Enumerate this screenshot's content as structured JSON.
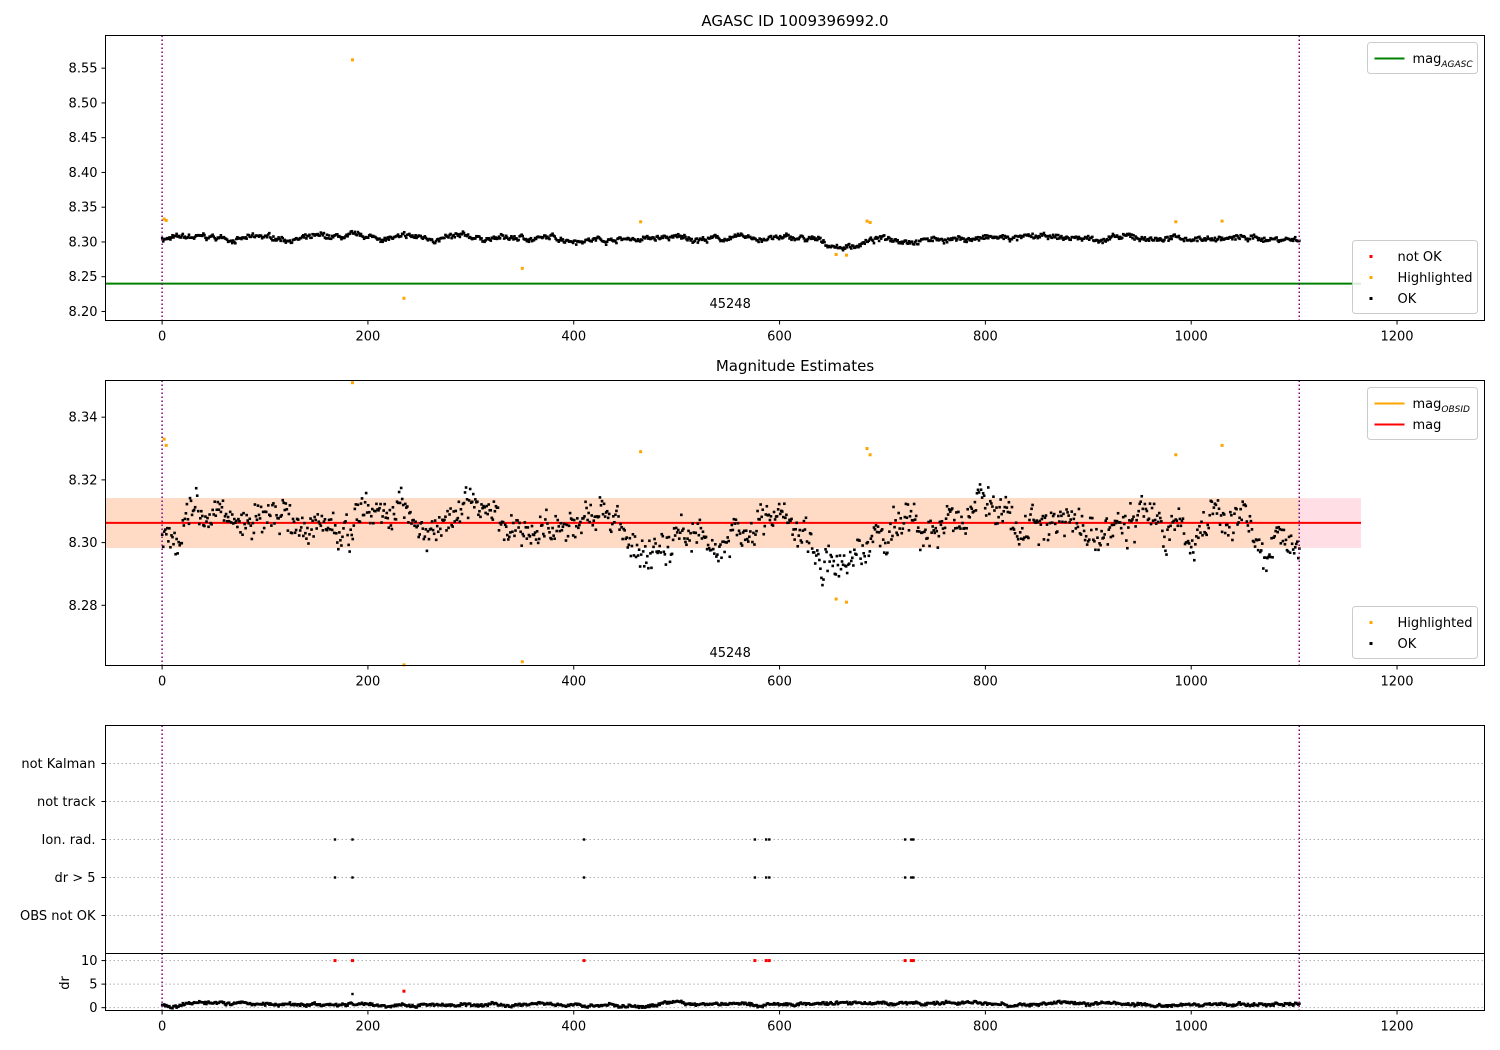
{
  "colors": {
    "ok": "#000000",
    "highlighted": "#ffa500",
    "not_ok": "#ff0000",
    "agasc_line": "#008000",
    "obsid_line": "#ffa500",
    "mag_line": "#ff0000",
    "vline": "#800080",
    "band": "#ffc0cb",
    "band2": "#ffdab9",
    "grid": "#b0b0b0"
  },
  "chart_data": [
    {
      "id": "p1",
      "type": "scatter",
      "title": "AGASC ID 1009396992.0",
      "xlim": [
        -55,
        1285
      ],
      "ylim": [
        8.187,
        8.597
      ],
      "xticks": [
        0,
        200,
        400,
        600,
        800,
        1000,
        1200
      ],
      "xtick_labels": [
        "0",
        "200",
        "400",
        "600",
        "800",
        "1000",
        "1200"
      ],
      "yticks": [
        8.2,
        8.25,
        8.3,
        8.35,
        8.4,
        8.45,
        8.5,
        8.55
      ],
      "ytick_labels": [
        "8.20",
        "8.25",
        "8.30",
        "8.35",
        "8.40",
        "8.45",
        "8.50",
        "8.55"
      ],
      "vlines": [
        0,
        1105
      ],
      "hlines": [
        {
          "y": 8.24,
          "x0": -55,
          "x1": 1165,
          "color": "#008000"
        }
      ],
      "annotation": {
        "text": "45248",
        "x": 552,
        "y": 8.205
      },
      "ok_series": {
        "n": 1105,
        "x0": 0,
        "x1": 1105,
        "base": 8.305,
        "amp": 0.006,
        "seed": 7,
        "dip": {
          "center": 660,
          "width": 25,
          "depth": 0.012
        }
      },
      "highlighted": [
        [
          2,
          8.333
        ],
        [
          4,
          8.331
        ],
        [
          185,
          8.562
        ],
        [
          235,
          8.219
        ],
        [
          350,
          8.262
        ],
        [
          465,
          8.329
        ],
        [
          655,
          8.282
        ],
        [
          665,
          8.281
        ],
        [
          685,
          8.33
        ],
        [
          688,
          8.328
        ],
        [
          985,
          8.329
        ],
        [
          1030,
          8.33
        ]
      ],
      "legends": [
        {
          "pos": "top-right",
          "entries": [
            {
              "label": "mag",
              "sub": "AGASC",
              "kind": "line",
              "color": "#008000"
            }
          ]
        },
        {
          "pos": "bottom-right",
          "entries": [
            {
              "label": "not OK",
              "kind": "dot",
              "color": "#ff0000"
            },
            {
              "label": "Highlighted",
              "kind": "dot",
              "color": "#ffa500"
            },
            {
              "label": "OK",
              "kind": "dot",
              "color": "#000000"
            }
          ]
        }
      ]
    },
    {
      "id": "p2",
      "type": "scatter",
      "title": "Magnitude Estimates",
      "xlim": [
        -55,
        1285
      ],
      "ylim": [
        8.2608,
        8.3517
      ],
      "xticks": [
        0,
        200,
        400,
        600,
        800,
        1000,
        1200
      ],
      "xtick_labels": [
        "0",
        "200",
        "400",
        "600",
        "800",
        "1000",
        "1200"
      ],
      "yticks": [
        8.28,
        8.3,
        8.32,
        8.34
      ],
      "ytick_labels": [
        "8.28",
        "8.30",
        "8.32",
        "8.34"
      ],
      "vlines": [
        0,
        1105
      ],
      "band": {
        "y0": 8.2983,
        "y1": 8.3142,
        "x0": -55,
        "x1": 1165
      },
      "band_inner": {
        "y0": 8.2983,
        "y1": 8.3142,
        "x0": -55,
        "x1": 1105
      },
      "hlines": [
        {
          "y": 8.3063,
          "x0": -55,
          "x1": 1165,
          "color": "#ff0000"
        }
      ],
      "annotation": {
        "text": "45248",
        "x": 552,
        "y": 8.2635
      },
      "ok_series": {
        "n": 1105,
        "x0": 0,
        "x1": 1105,
        "base": 8.3055,
        "amp": 0.0085,
        "seed": 11,
        "dip": {
          "center": 660,
          "width": 25,
          "depth": 0.012
        }
      },
      "highlighted": [
        [
          2,
          8.333
        ],
        [
          4,
          8.331
        ],
        [
          185,
          8.351
        ],
        [
          235,
          8.261
        ],
        [
          350,
          8.262
        ],
        [
          465,
          8.329
        ],
        [
          655,
          8.282
        ],
        [
          665,
          8.281
        ],
        [
          685,
          8.33
        ],
        [
          688,
          8.328
        ],
        [
          985,
          8.328
        ],
        [
          1030,
          8.331
        ]
      ],
      "legends": [
        {
          "pos": "top-right",
          "entries": [
            {
              "label": "mag",
              "sub": "OBSID",
              "kind": "line",
              "color": "#ffa500"
            },
            {
              "label": "mag",
              "kind": "line",
              "color": "#ff0000"
            }
          ]
        },
        {
          "pos": "bottom-right",
          "entries": [
            {
              "label": "Highlighted",
              "kind": "dot",
              "color": "#ffa500"
            },
            {
              "label": "OK",
              "kind": "dot",
              "color": "#000000"
            }
          ]
        }
      ]
    },
    {
      "id": "p3",
      "type": "scatter",
      "title": "",
      "xlim": [
        -55,
        1285
      ],
      "categories": [
        "not Kalman",
        "not track",
        "Ion. rad.",
        "dr > 5",
        "OBS not OK"
      ],
      "vlines": [
        0,
        1105
      ],
      "flag_points": {
        "Ion. rad.": [
          168,
          185,
          410,
          576,
          587,
          590,
          722,
          728,
          730
        ],
        "dr > 5": [
          168,
          185,
          410,
          576,
          587,
          590,
          722,
          728,
          730
        ]
      }
    },
    {
      "id": "p4",
      "type": "scatter",
      "title": "",
      "ylabel": "dr",
      "xlim": [
        -55,
        1285
      ],
      "ylim": [
        -0.6,
        11.5
      ],
      "xticks": [
        0,
        200,
        400,
        600,
        800,
        1000,
        1200
      ],
      "xtick_labels": [
        "0",
        "200",
        "400",
        "600",
        "800",
        "1000",
        "1200"
      ],
      "yticks": [
        0,
        5,
        10
      ],
      "ytick_labels": [
        "0",
        "5",
        "10"
      ],
      "vlines": [
        0,
        1105
      ],
      "ok_series": {
        "n": 1105,
        "x0": 0,
        "x1": 1105,
        "base": 0.8,
        "amp": 0.5,
        "seed": 3
      },
      "extra_ok": [
        [
          185,
          2.9
        ]
      ],
      "red_points": [
        [
          168,
          10
        ],
        [
          185,
          10
        ],
        [
          410,
          10
        ],
        [
          576,
          10
        ],
        [
          587,
          10
        ],
        [
          590,
          10
        ],
        [
          722,
          10
        ],
        [
          728,
          10
        ],
        [
          730,
          10
        ],
        [
          235,
          3.5
        ]
      ]
    }
  ]
}
